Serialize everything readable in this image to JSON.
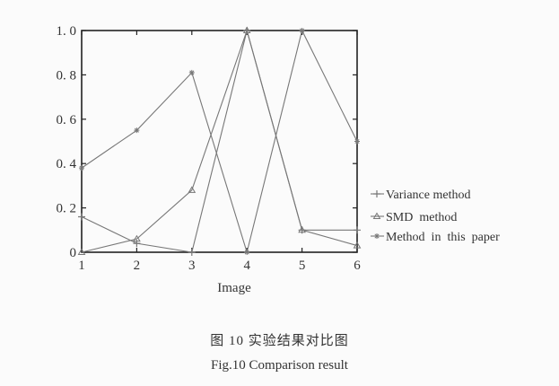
{
  "chart_data": {
    "type": "line",
    "xlabel": "Image",
    "ylabel": "",
    "x": [
      1,
      2,
      3,
      4,
      5,
      6
    ],
    "xlim": [
      1,
      6
    ],
    "ylim": [
      0,
      1
    ],
    "xticks": [
      "1",
      "2",
      "3",
      "4",
      "5",
      "6"
    ],
    "yticks": [
      "0",
      "0. 2",
      "0. 4",
      "0. 6",
      "0. 8",
      "1. 0"
    ],
    "grid": false,
    "legend_position": "right",
    "series": [
      {
        "name": "Variance method",
        "marker": "plus",
        "values": [
          0.16,
          0.04,
          0.0,
          1.0,
          0.1,
          0.1
        ]
      },
      {
        "name": "SMD  method",
        "marker": "triangle",
        "values": [
          0.0,
          0.06,
          0.28,
          1.0,
          0.1,
          0.03
        ]
      },
      {
        "name": "Method  in  this  paper",
        "marker": "star",
        "values": [
          0.38,
          0.55,
          0.81,
          0.0,
          1.0,
          0.5
        ]
      }
    ]
  },
  "caption": {
    "cn": "图 10 实验结果对比图",
    "en": "Fig.10 Comparison result"
  },
  "colors": {
    "line": "#777777",
    "axis": "#222222",
    "background": "#fbfbfb"
  }
}
